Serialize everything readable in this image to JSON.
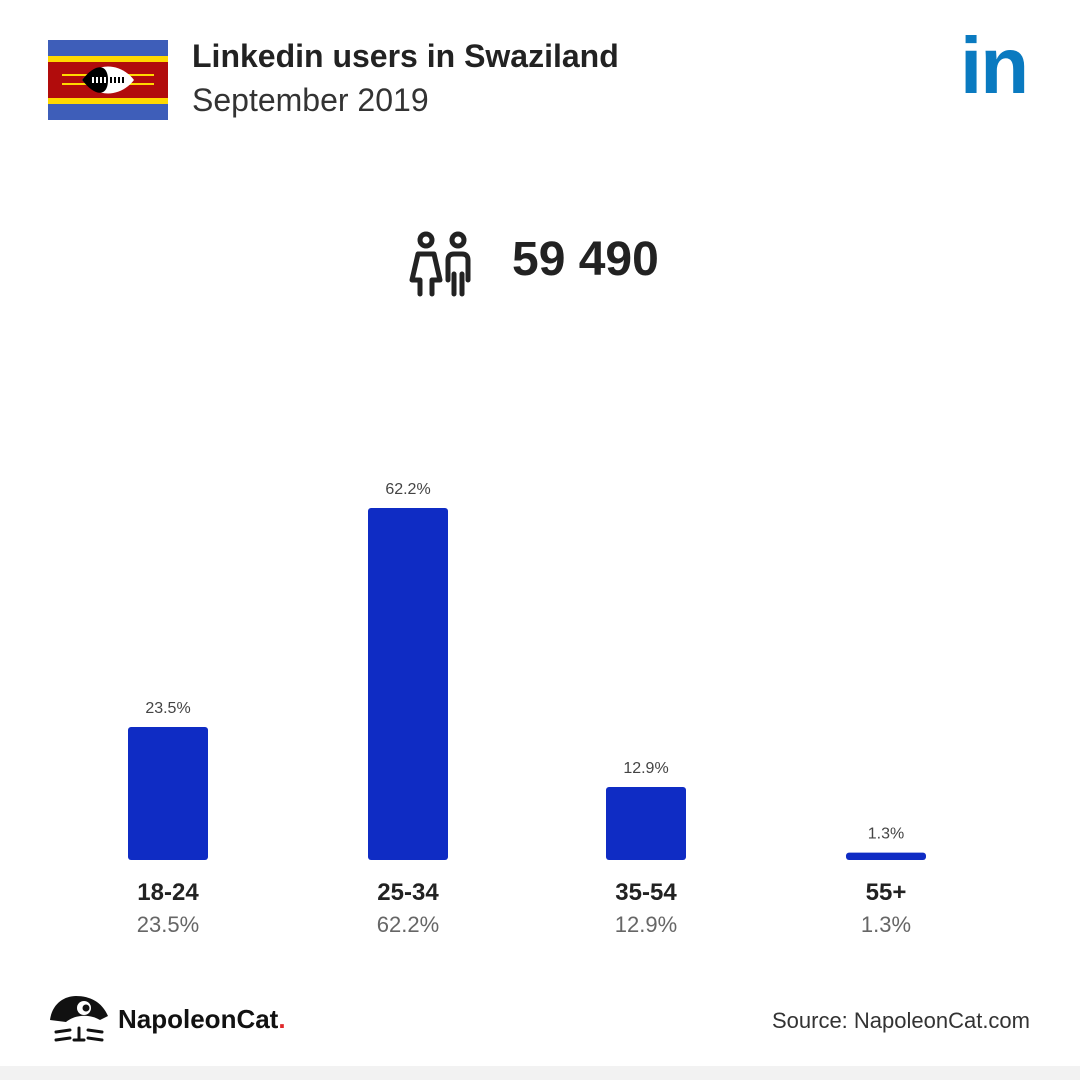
{
  "header": {
    "title": "Linkedin users in Swaziland",
    "subtitle": "September 2019",
    "logo_text": "in"
  },
  "total_users": "59 490",
  "chart_data": {
    "type": "bar",
    "categories": [
      "18-24",
      "25-34",
      "35-54",
      "55+"
    ],
    "values": [
      23.5,
      62.2,
      12.9,
      1.3
    ],
    "value_labels": [
      "23.5%",
      "62.2%",
      "12.9%",
      "1.3%"
    ],
    "xlabel": "",
    "ylabel": "",
    "ylim": [
      0,
      62.2
    ],
    "grid": false,
    "legend": "none"
  },
  "footer": {
    "brand_name": "NapoleonCat",
    "brand_dot": ".",
    "source": "Source: NapoleonCat.com"
  },
  "colors": {
    "bar": "#0f2cc4",
    "linkedin": "#0a7ac0",
    "flag_blue": "#3e5eb9",
    "flag_yellow": "#ffd900",
    "flag_red": "#b10c0c",
    "text_dark": "#222222",
    "text_light": "#666666"
  },
  "icons": {
    "flag": "swaziland-flag-icon",
    "users": "users-icon",
    "brand": "napoleoncat-logo-icon"
  }
}
